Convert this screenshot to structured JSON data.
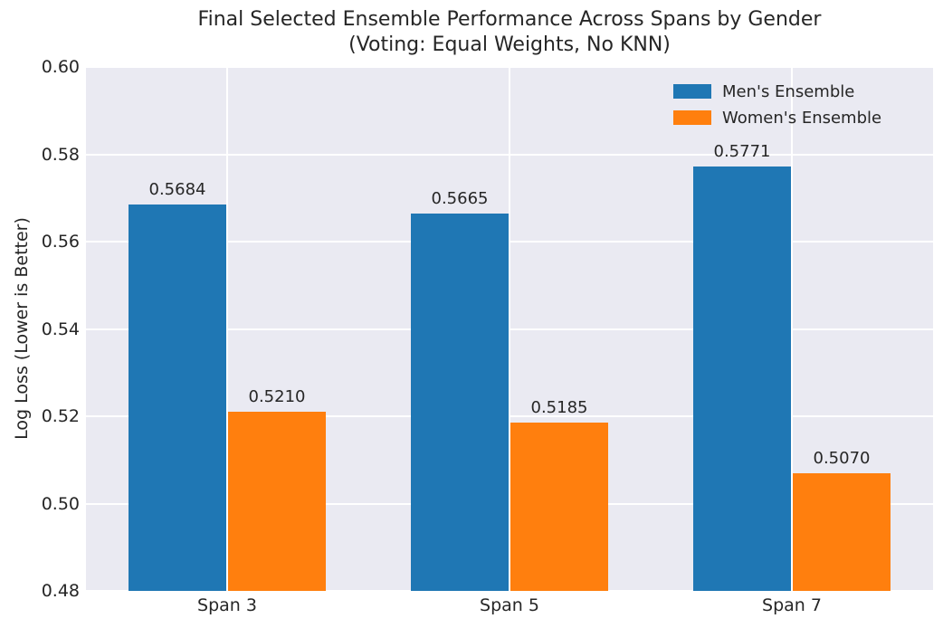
{
  "chart_data": {
    "type": "bar",
    "title": "Final Selected Ensemble Performance Across Spans by Gender\n(Voting: Equal Weights, No KNN)",
    "title_line1": "Final Selected Ensemble Performance Across Spans by Gender",
    "title_line2": "(Voting: Equal Weights, No KNN)",
    "categories": [
      "Span 3",
      "Span 5",
      "Span 7"
    ],
    "series": [
      {
        "name": "Men's Ensemble",
        "color": "#1f77b4",
        "values": [
          0.5684,
          0.5665,
          0.5771
        ],
        "bar_labels": [
          "0.5684",
          "0.5665",
          "0.5771"
        ]
      },
      {
        "name": "Women's Ensemble",
        "color": "#ff7f0e",
        "values": [
          0.521,
          0.5185,
          0.507
        ],
        "bar_labels": [
          "0.5210",
          "0.5185",
          "0.5070"
        ]
      }
    ],
    "xlabel": "",
    "ylabel": "Log Loss (Lower is Better)",
    "ylim": [
      0.48,
      0.6
    ],
    "yticks": [
      "0.48",
      "0.50",
      "0.52",
      "0.54",
      "0.56",
      "0.58",
      "0.60"
    ],
    "grid": true,
    "legend_position": "upper right",
    "colors": {
      "plot_background": "#eaeaf2",
      "gridline": "#ffffff",
      "figure_background": "#ffffff",
      "text": "#262626"
    }
  }
}
